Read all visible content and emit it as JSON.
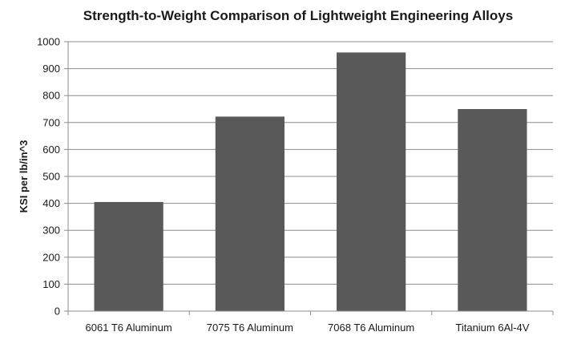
{
  "chart_data": {
    "type": "bar",
    "title": "Strength-to-Weight Comparison of Lightweight Engineering Alloys",
    "xlabel": "",
    "ylabel": "KSI per lb/in^3",
    "categories": [
      "6061 T6 Aluminum",
      "7075 T6 Aluminum",
      "7068 T6 Aluminum",
      "Titanium 6Al-4V"
    ],
    "values": [
      405,
      722,
      960,
      750
    ],
    "ylim": [
      0,
      1000
    ],
    "yticks": [
      "0",
      "100",
      "200",
      "300",
      "400",
      "500",
      "600",
      "700",
      "800",
      "900",
      "1000"
    ],
    "grid": true,
    "legend": "none",
    "colors": {
      "bar": "#595959",
      "grid": "#8c8c8c",
      "axis": "#8c8c8c"
    }
  }
}
